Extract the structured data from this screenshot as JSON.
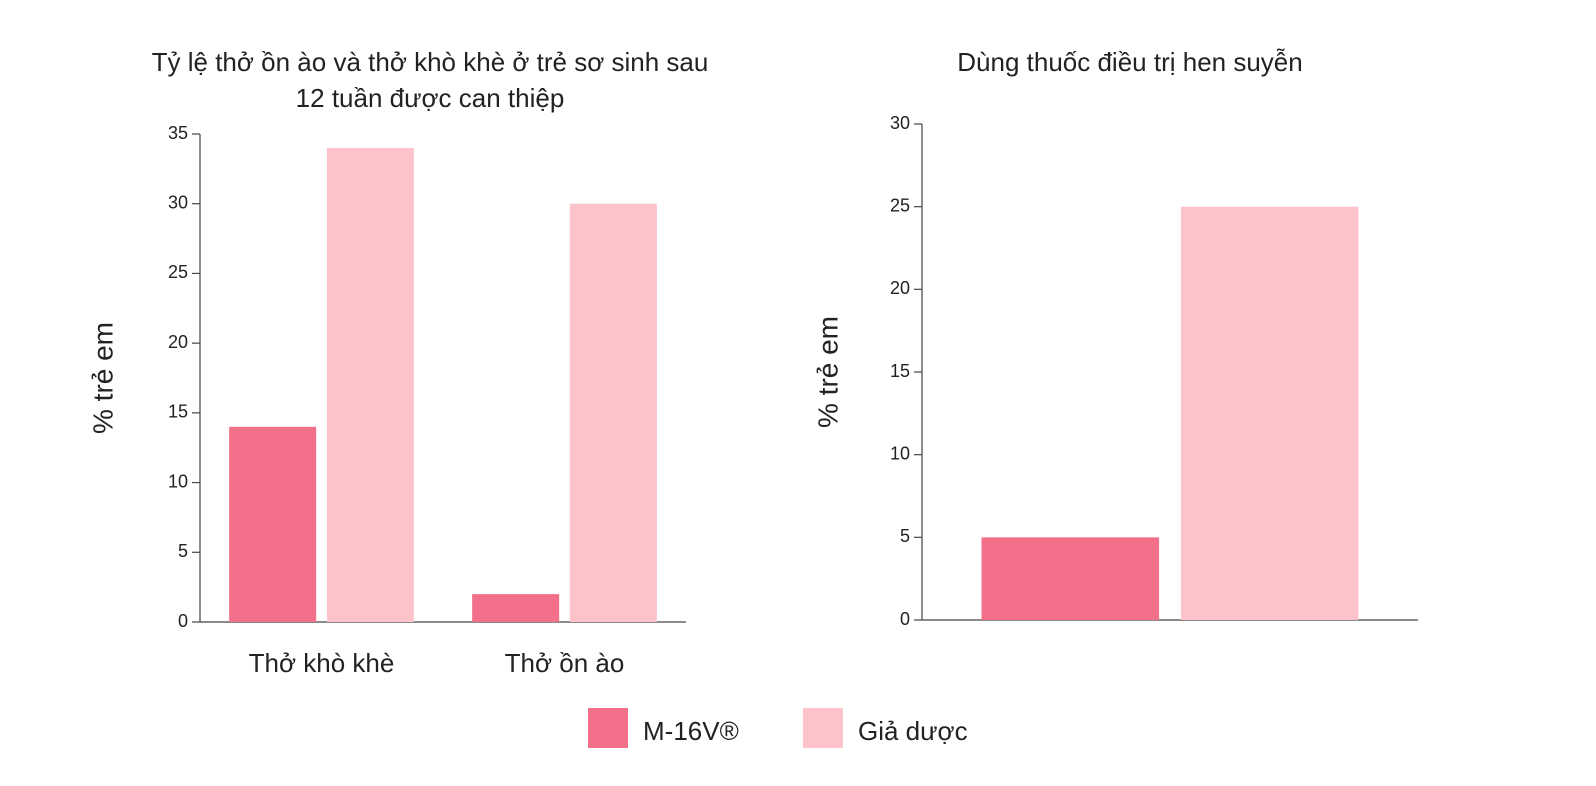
{
  "chart_data": [
    {
      "type": "bar",
      "title": "Tỷ lệ thở ồn ào và thở khò khè ở trẻ sơ sinh sau 12 tuần được can thiệp",
      "y_label": "% trẻ em",
      "categories": [
        "Thở khò khè",
        "Thở ồn ào"
      ],
      "series": [
        {
          "name": "M-16V®",
          "color": "#f2708a",
          "values": [
            14,
            2
          ]
        },
        {
          "name": "Giả dược",
          "color": "#fdc3ca",
          "values": [
            34,
            30
          ]
        }
      ],
      "ylim": [
        0,
        35
      ],
      "yticks": [
        0,
        5,
        10,
        15,
        20,
        25,
        30,
        35
      ],
      "grid": false
    },
    {
      "type": "bar",
      "title": "Dùng thuốc điều trị hen suyễn",
      "y_label": "% trẻ em",
      "categories": [
        null
      ],
      "series": [
        {
          "name": "M-16V®",
          "color": "#f2708a",
          "values": [
            5
          ]
        },
        {
          "name": "Giả dược",
          "color": "#fdc3ca",
          "values": [
            25
          ]
        }
      ],
      "ylim": [
        0,
        30
      ],
      "yticks": [
        0,
        5,
        10,
        15,
        20,
        25,
        30
      ],
      "grid": false
    }
  ]
}
